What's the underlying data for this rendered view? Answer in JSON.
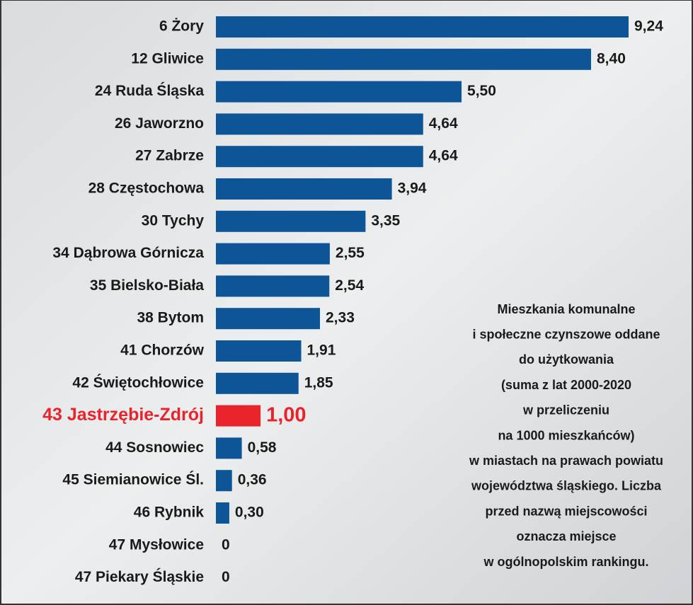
{
  "chart_data": {
    "type": "bar",
    "orientation": "horizontal",
    "categories": [
      "6 Żory",
      "12 Gliwice",
      "24 Ruda Śląska",
      "26 Jaworzno",
      "27 Zabrze",
      "28 Częstochowa",
      "30 Tychy",
      "34 Dąbrowa Górnicza",
      "35 Bielsko-Biała",
      "38 Bytom",
      "41 Chorzów",
      "42 Świętochłowice",
      "43 Jastrzębie-Zdrój",
      "44 Sosnowiec",
      "45 Siemianowice Śl.",
      "46 Rybnik",
      "47 Mysłowice",
      "47 Piekary Śląskie"
    ],
    "values": [
      9.24,
      8.4,
      5.5,
      4.64,
      4.64,
      3.94,
      3.35,
      2.55,
      2.54,
      2.33,
      1.91,
      1.85,
      1.0,
      0.58,
      0.36,
      0.3,
      0,
      0
    ],
    "value_labels": [
      "9,24",
      "8,40",
      "5,50",
      "4,64",
      "4,64",
      "3,94",
      "3,35",
      "2,55",
      "2,54",
      "2,33",
      "1,91",
      "1,85",
      "1,00",
      "0,58",
      "0,36",
      "0,30",
      "0",
      "0"
    ],
    "colors": [
      "#0d5597",
      "#0d5597",
      "#0d5597",
      "#0d5597",
      "#0d5597",
      "#0d5597",
      "#0d5597",
      "#0d5597",
      "#0d5597",
      "#0d5597",
      "#0d5597",
      "#0d5597",
      "#e8232a",
      "#0d5597",
      "#0d5597",
      "#0d5597",
      "#0d5597",
      "#0d5597"
    ],
    "annotation": [
      "Mieszkania komunalne",
      "i społeczne czynszowe oddane",
      "do użytkowania",
      "(suma z lat 2000-2020",
      "w przeliczeniu",
      "na 1000 mieszkańców)",
      "w miastach na prawach powiatu",
      "województwa śląskiego. Liczba",
      "przed nazwą miejscowości",
      "oznacza miejsce",
      "w ogólnopolskim rankingu."
    ]
  }
}
